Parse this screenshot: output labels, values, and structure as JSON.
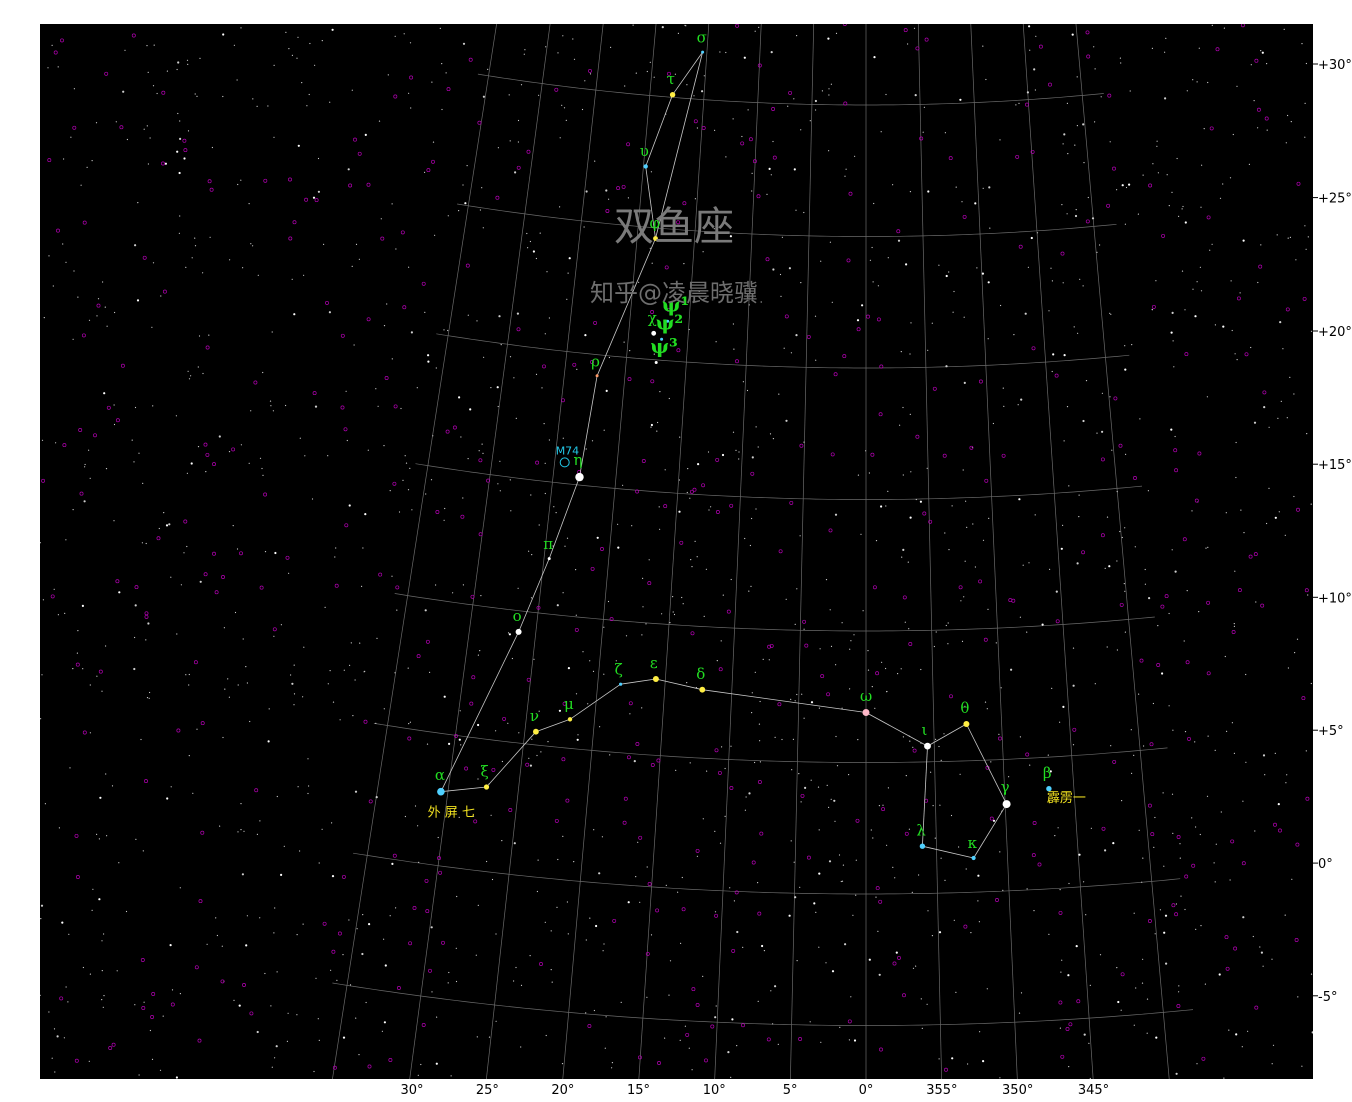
{
  "title": "双鱼座",
  "watermark": "知乎@凌晨晓骥",
  "ra_ticks": [
    {
      "ra": 30,
      "label": "30°"
    },
    {
      "ra": 25,
      "label": "25°"
    },
    {
      "ra": 20,
      "label": "20°"
    },
    {
      "ra": 15,
      "label": "15°"
    },
    {
      "ra": 10,
      "label": "10°"
    },
    {
      "ra": 5,
      "label": "5°"
    },
    {
      "ra": 0,
      "label": "0°"
    },
    {
      "ra": -5,
      "label": "355°"
    },
    {
      "ra": -10,
      "label": "350°"
    },
    {
      "ra": -15,
      "label": "345°"
    }
  ],
  "dec_ticks": [
    {
      "dec": 30,
      "label": "+30°"
    },
    {
      "dec": 25,
      "label": "+25°"
    },
    {
      "dec": 20,
      "label": "+20°"
    },
    {
      "dec": 15,
      "label": "+15°"
    },
    {
      "dec": 10,
      "label": "+10°"
    },
    {
      "dec": 5,
      "label": "+5°"
    },
    {
      "dec": 0,
      "label": "0°"
    },
    {
      "dec": -5,
      "label": "-5°"
    }
  ],
  "stars": [
    {
      "id": "alpha",
      "label": "α",
      "ra": 30.5,
      "dec": 2.8,
      "color": "#4fd0ff",
      "mag": 3.8
    },
    {
      "id": "xi",
      "label": "ξ",
      "ra": 27.3,
      "dec": 3.2,
      "color": "#ffee44",
      "mag": 4.6
    },
    {
      "id": "nu",
      "label": "ν",
      "ra": 24.2,
      "dec": 5.5,
      "color": "#ffee44",
      "mag": 4.4
    },
    {
      "id": "mu",
      "label": "μ",
      "ra": 21.8,
      "dec": 6.1,
      "color": "#ffee44",
      "mag": 4.8
    },
    {
      "id": "zeta",
      "label": "ζ",
      "ra": 18.3,
      "dec": 7.6,
      "color": "#4fd0ff",
      "mag": 5.2
    },
    {
      "id": "epsilon",
      "label": "ε",
      "ra": 15.7,
      "dec": 7.9,
      "color": "#ffee44",
      "mag": 4.3
    },
    {
      "id": "delta",
      "label": "δ",
      "ra": 12.2,
      "dec": 7.6,
      "color": "#ffee44",
      "mag": 4.4
    },
    {
      "id": "omega",
      "label": "ω",
      "ra": 0.0,
      "dec": 6.9,
      "color": "#ffb8c8",
      "mag": 4.0
    },
    {
      "id": "iota",
      "label": "ι",
      "ra": -4.5,
      "dec": 5.6,
      "color": "#ffffff",
      "mag": 4.1
    },
    {
      "id": "theta",
      "label": "θ",
      "ra": -7.4,
      "dec": 6.4,
      "color": "#ffee44",
      "mag": 4.3
    },
    {
      "id": "gamma",
      "label": "γ",
      "ra": -10.1,
      "dec": 3.3,
      "color": "#ffffff",
      "mag": 3.7
    },
    {
      "id": "kappa",
      "label": "κ",
      "ra": -7.6,
      "dec": 1.3,
      "color": "#4fd0ff",
      "mag": 4.9
    },
    {
      "id": "lambda",
      "label": "λ",
      "ra": -4.0,
      "dec": 1.8,
      "color": "#4fd0ff",
      "mag": 4.5
    },
    {
      "id": "beta",
      "label": "β",
      "ra": -13.2,
      "dec": 3.8,
      "color": "#4fd0ff",
      "mag": 4.5
    },
    {
      "id": "omicron",
      "label": "ο",
      "ra": 26.3,
      "dec": 9.2,
      "color": "#ffffff",
      "mag": 4.3
    },
    {
      "id": "pi",
      "label": "π",
      "ra": 24.6,
      "dec": 12.1,
      "color": "#ffffff",
      "mag": 5.5
    },
    {
      "id": "eta",
      "label": "η",
      "ra": 22.9,
      "dec": 15.3,
      "color": "#ffffff",
      "mag": 3.6
    },
    {
      "id": "rho",
      "label": "ρ",
      "ra": 22.3,
      "dec": 19.2,
      "color": "#ff9966",
      "mag": 5.4
    },
    {
      "id": "phi",
      "label": "φ",
      "ra": 18.4,
      "dec": 24.6,
      "color": "#ffee44",
      "mag": 4.7
    },
    {
      "id": "upsilon",
      "label": "υ",
      "ra": 19.8,
      "dec": 27.3,
      "color": "#4fd0ff",
      "mag": 4.8
    },
    {
      "id": "tau",
      "label": "τ",
      "ra": 17.9,
      "dec": 30.1,
      "color": "#ffee44",
      "mag": 4.5
    },
    {
      "id": "sigma",
      "label": "σ",
      "ra": 15.4,
      "dec": 31.8,
      "color": "#4fd0ff",
      "mag": 5.5
    },
    {
      "id": "chi",
      "label": "χ",
      "ra": 17.9,
      "dec": 21.0,
      "color": "#ffffff",
      "mag": 4.7
    },
    {
      "id": "psi1",
      "label": "ψ¹",
      "ra": 16.8,
      "dec": 21.5,
      "color": "#4fd0ff",
      "mag": 5.3
    },
    {
      "id": "psi2",
      "label": "ψ²",
      "ra": 17.2,
      "dec": 20.8,
      "color": "#4fd0ff",
      "mag": 5.6
    },
    {
      "id": "psi3",
      "label": "ψ³",
      "ra": 17.5,
      "dec": 19.9,
      "color": "#ffffff",
      "mag": 5.6
    }
  ],
  "constellation_lines": [
    [
      "alpha",
      "xi"
    ],
    [
      "xi",
      "nu"
    ],
    [
      "nu",
      "mu"
    ],
    [
      "mu",
      "zeta"
    ],
    [
      "zeta",
      "epsilon"
    ],
    [
      "epsilon",
      "delta"
    ],
    [
      "delta",
      "omega"
    ],
    [
      "omega",
      "iota"
    ],
    [
      "iota",
      "theta"
    ],
    [
      "theta",
      "gamma"
    ],
    [
      "gamma",
      "kappa"
    ],
    [
      "kappa",
      "lambda"
    ],
    [
      "lambda",
      "iota"
    ],
    [
      "alpha",
      "omicron"
    ],
    [
      "omicron",
      "pi"
    ],
    [
      "pi",
      "eta"
    ],
    [
      "eta",
      "rho"
    ],
    [
      "rho",
      "phi"
    ],
    [
      "phi",
      "upsilon"
    ],
    [
      "upsilon",
      "tau"
    ],
    [
      "tau",
      "sigma"
    ],
    [
      "sigma",
      "phi"
    ]
  ],
  "dso": [
    {
      "label": "M74",
      "ra": 24.2,
      "dec": 15.8,
      "color": "#22c8e8"
    }
  ],
  "chinese_labels": [
    {
      "label": "外 屏 七",
      "ra": 31.2,
      "dec": 1.8,
      "color": "#f0e020"
    },
    {
      "label": "霹雳一",
      "ra": -13.0,
      "dec": 3.3,
      "color": "#f0e020"
    }
  ]
}
